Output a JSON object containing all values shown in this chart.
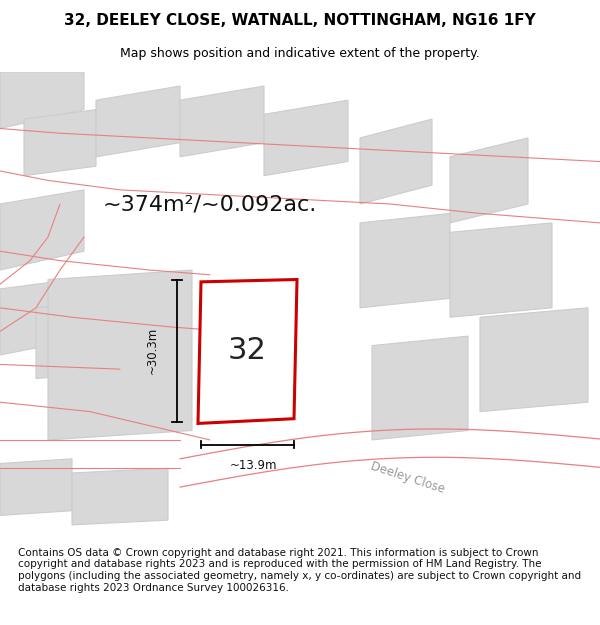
{
  "title_line1": "32, DEELEY CLOSE, WATNALL, NOTTINGHAM, NG16 1FY",
  "title_line2": "Map shows position and indicative extent of the property.",
  "area_text": "~374m²/~0.092ac.",
  "plot_number": "32",
  "dim_width": "~13.9m",
  "dim_height": "~30.3m",
  "road_label": "Deeley Close",
  "footer_text": "Contains OS data © Crown copyright and database right 2021. This information is subject to Crown copyright and database rights 2023 and is reproduced with the permission of HM Land Registry. The polygons (including the associated geometry, namely x, y co-ordinates) are subject to Crown copyright and database rights 2023 Ordnance Survey 100026316.",
  "bg_color": "#ffffff",
  "map_bg": "#f5f5f5",
  "plot_fill": "#ffffff",
  "plot_border": "#cc0000",
  "road_lines_color": "#e88080",
  "building_fill": "#d8d8d8",
  "building_border": "#cccccc",
  "title_fontsize": 11,
  "subtitle_fontsize": 9,
  "area_fontsize": 16,
  "plot_num_fontsize": 22,
  "footer_fontsize": 7.5
}
